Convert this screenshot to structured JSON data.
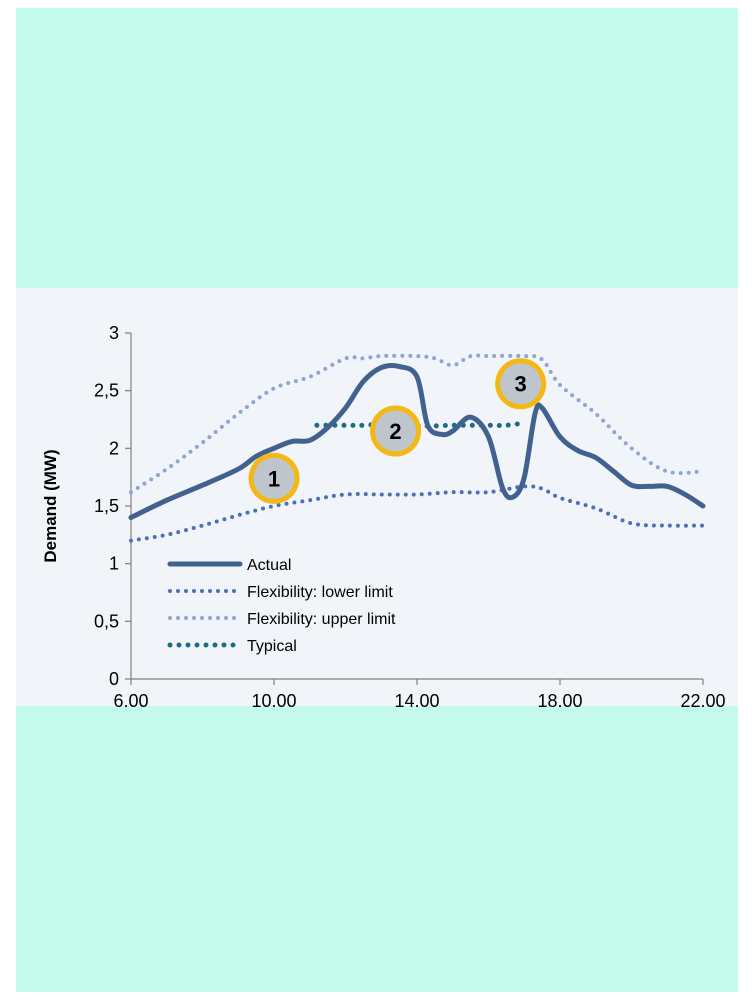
{
  "chart_data": {
    "type": "line",
    "title": "",
    "xlabel": "",
    "ylabel": "Demand (MW)",
    "xlim": [
      6,
      22
    ],
    "ylim": [
      0,
      3
    ],
    "x_ticks": [
      {
        "value": 6,
        "label": "6.00"
      },
      {
        "value": 10,
        "label": "10.00"
      },
      {
        "value": 14,
        "label": "14.00"
      },
      {
        "value": 18,
        "label": "18.00"
      },
      {
        "value": 22,
        "label": "22.00"
      }
    ],
    "y_ticks": [
      {
        "value": 0,
        "label": "0"
      },
      {
        "value": 0.5,
        "label": "0,5"
      },
      {
        "value": 1,
        "label": "1"
      },
      {
        "value": 1.5,
        "label": "1,5"
      },
      {
        "value": 2,
        "label": "2"
      },
      {
        "value": 2.5,
        "label": "2,5"
      },
      {
        "value": 3,
        "label": "3"
      }
    ],
    "legend_position": "bottom-left",
    "grid": false,
    "series": [
      {
        "name": "Actual",
        "color": "#41618f",
        "style": "solid",
        "points": [
          [
            6,
            1.4
          ],
          [
            7,
            1.55
          ],
          [
            8,
            1.68
          ],
          [
            9,
            1.82
          ],
          [
            9.5,
            1.93
          ],
          [
            10,
            2.0
          ],
          [
            10.5,
            2.06
          ],
          [
            11,
            2.07
          ],
          [
            11.5,
            2.18
          ],
          [
            12,
            2.35
          ],
          [
            12.5,
            2.58
          ],
          [
            13,
            2.7
          ],
          [
            13.5,
            2.71
          ],
          [
            14,
            2.62
          ],
          [
            14.3,
            2.2
          ],
          [
            14.7,
            2.12
          ],
          [
            15,
            2.15
          ],
          [
            15.5,
            2.27
          ],
          [
            16,
            2.1
          ],
          [
            16.4,
            1.65
          ],
          [
            16.7,
            1.58
          ],
          [
            17,
            1.75
          ],
          [
            17.3,
            2.3
          ],
          [
            17.5,
            2.35
          ],
          [
            18,
            2.1
          ],
          [
            18.5,
            1.98
          ],
          [
            19,
            1.92
          ],
          [
            19.5,
            1.8
          ],
          [
            20,
            1.68
          ],
          [
            20.5,
            1.67
          ],
          [
            21,
            1.67
          ],
          [
            21.5,
            1.6
          ],
          [
            22,
            1.5
          ]
        ]
      },
      {
        "name": "Flexibility: lower limit",
        "color": "#4a72b8",
        "style": "dotted",
        "points": [
          [
            6,
            1.2
          ],
          [
            7,
            1.25
          ],
          [
            8,
            1.33
          ],
          [
            9,
            1.42
          ],
          [
            10,
            1.5
          ],
          [
            11,
            1.55
          ],
          [
            12,
            1.6
          ],
          [
            13,
            1.6
          ],
          [
            14,
            1.6
          ],
          [
            15,
            1.62
          ],
          [
            16,
            1.62
          ],
          [
            17,
            1.67
          ],
          [
            17.5,
            1.65
          ],
          [
            18,
            1.57
          ],
          [
            19,
            1.48
          ],
          [
            20,
            1.35
          ],
          [
            21,
            1.33
          ],
          [
            22,
            1.33
          ]
        ]
      },
      {
        "name": "Flexibility: upper limit",
        "color": "#8fa5d3",
        "style": "dotted",
        "points": [
          [
            6,
            1.62
          ],
          [
            7,
            1.82
          ],
          [
            8,
            2.05
          ],
          [
            9,
            2.3
          ],
          [
            10,
            2.52
          ],
          [
            11,
            2.62
          ],
          [
            12,
            2.78
          ],
          [
            12.5,
            2.78
          ],
          [
            13,
            2.8
          ],
          [
            14,
            2.8
          ],
          [
            14.5,
            2.78
          ],
          [
            15,
            2.72
          ],
          [
            15.5,
            2.8
          ],
          [
            16,
            2.8
          ],
          [
            17,
            2.8
          ],
          [
            17.5,
            2.77
          ],
          [
            18,
            2.55
          ],
          [
            19,
            2.3
          ],
          [
            20,
            2.0
          ],
          [
            21,
            1.8
          ],
          [
            22,
            1.8
          ]
        ]
      },
      {
        "name": "Typical",
        "color": "#1c6b80",
        "style": "dotted-heavy",
        "points": [
          [
            11.2,
            2.2
          ],
          [
            12,
            2.2
          ],
          [
            12.5,
            2.2
          ],
          [
            13,
            2.22
          ],
          [
            13.5,
            2.3
          ],
          [
            14,
            2.2
          ],
          [
            15,
            2.2
          ],
          [
            16,
            2.2
          ],
          [
            16.5,
            2.2
          ],
          [
            17,
            2.22
          ]
        ]
      }
    ],
    "markers": [
      {
        "label": "1",
        "x": 10,
        "y": 1.74
      },
      {
        "label": "2",
        "x": 13.4,
        "y": 2.15
      },
      {
        "label": "3",
        "x": 16.9,
        "y": 2.56
      }
    ]
  },
  "colors": {
    "band": "#c4fbec",
    "panel": "#f1f4f9",
    "marker_fill": "#bfc5cc",
    "marker_ring": "#f4b815"
  }
}
